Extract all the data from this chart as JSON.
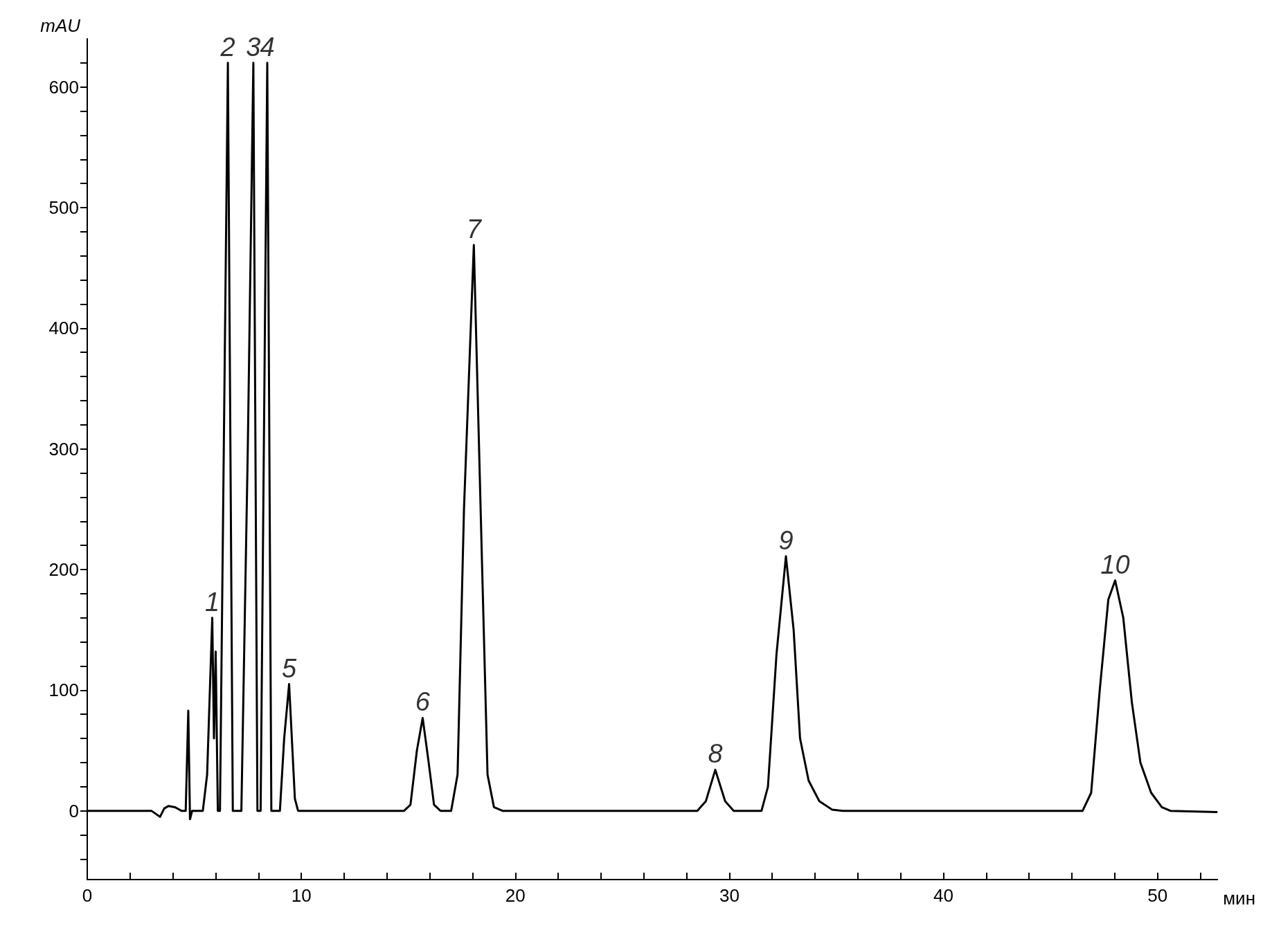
{
  "chart_data": {
    "type": "line",
    "xlabel": "мин",
    "ylabel": "mAU",
    "color": "#000000",
    "marker": "none",
    "xlim": [
      0,
      52.8
    ],
    "ylim": [
      -57,
      640
    ],
    "xticks": [
      0,
      {
        "value": 2,
        "label": null
      },
      {
        "value": 4,
        "label": null
      },
      {
        "value": 6,
        "label": null
      },
      {
        "value": 8,
        "label": null
      },
      10,
      {
        "value": 12,
        "label": null
      },
      {
        "value": 14,
        "label": null
      },
      {
        "value": 16,
        "label": null
      },
      {
        "value": 18,
        "label": null
      },
      20,
      {
        "value": 22,
        "label": null
      },
      {
        "value": 24,
        "label": null
      },
      {
        "value": 26,
        "label": null
      },
      {
        "value": 28,
        "label": null
      },
      30,
      {
        "value": 32,
        "label": null
      },
      {
        "value": 34,
        "label": null
      },
      {
        "value": 36,
        "label": null
      },
      {
        "value": 38,
        "label": null
      },
      40,
      {
        "value": 42,
        "label": null
      },
      {
        "value": 44,
        "label": null
      },
      {
        "value": 46,
        "label": null
      },
      {
        "value": 48,
        "label": null
      },
      50,
      {
        "value": 52,
        "label": null
      }
    ],
    "yticks": [
      {
        "value": -40,
        "label": null
      },
      {
        "value": -20,
        "label": null
      },
      0,
      {
        "value": 20,
        "label": null
      },
      {
        "value": 40,
        "label": null
      },
      {
        "value": 60,
        "label": null
      },
      {
        "value": 80,
        "label": null
      },
      100,
      {
        "value": 120,
        "label": null
      },
      {
        "value": 140,
        "label": null
      },
      {
        "value": 160,
        "label": null
      },
      {
        "value": 180,
        "label": null
      },
      200,
      {
        "value": 220,
        "label": null
      },
      {
        "value": 240,
        "label": null
      },
      {
        "value": 260,
        "label": null
      },
      {
        "value": 280,
        "label": null
      },
      300,
      {
        "value": 320,
        "label": null
      },
      {
        "value": 340,
        "label": null
      },
      {
        "value": 360,
        "label": null
      },
      {
        "value": 380,
        "label": null
      },
      400,
      {
        "value": 420,
        "label": null
      },
      {
        "value": 440,
        "label": null
      },
      {
        "value": 460,
        "label": null
      },
      {
        "value": 480,
        "label": null
      },
      500,
      {
        "value": 520,
        "label": null
      },
      {
        "value": 540,
        "label": null
      },
      {
        "value": 560,
        "label": null
      },
      {
        "value": 580,
        "label": null
      },
      600,
      {
        "value": 620,
        "label": null
      }
    ],
    "x": [
      0,
      3.0,
      3.4,
      3.6,
      3.8,
      4.1,
      4.4,
      4.6,
      4.72,
      4.8,
      4.9,
      5.4,
      5.6,
      5.84,
      5.92,
      6.0,
      6.1,
      6.2,
      6.57,
      6.8,
      7.2,
      7.5,
      7.76,
      7.95,
      8.1,
      8.41,
      8.6,
      9.0,
      9.2,
      9.43,
      9.7,
      9.85,
      14.8,
      15.1,
      15.4,
      15.67,
      15.95,
      16.2,
      16.5,
      17.0,
      17.3,
      17.6,
      18.06,
      18.45,
      18.7,
      19.0,
      19.4,
      28.5,
      28.9,
      29.34,
      29.8,
      30.2,
      31.5,
      31.8,
      32.2,
      32.64,
      33.0,
      33.3,
      33.7,
      34.2,
      34.8,
      35.3,
      46.5,
      46.9,
      47.3,
      47.7,
      48.02,
      48.4,
      48.8,
      49.2,
      49.7,
      50.2,
      50.6,
      52.8
    ],
    "values": [
      0,
      0,
      -5,
      2,
      4,
      3,
      0,
      0,
      83,
      -7,
      0,
      0,
      30,
      160,
      60,
      132,
      0,
      0,
      620,
      0,
      0,
      300,
      620,
      0,
      0,
      620,
      0,
      0,
      60,
      105,
      10,
      0,
      0,
      5,
      50,
      77,
      40,
      5,
      0,
      0,
      30,
      250,
      469,
      200,
      30,
      3,
      0,
      0,
      8,
      34,
      8,
      0,
      0,
      20,
      130,
      211,
      150,
      60,
      25,
      8,
      1,
      0,
      0,
      15,
      100,
      175,
      191,
      160,
      90,
      40,
      15,
      3,
      0,
      -1
    ],
    "annotations": [
      {
        "text": "1",
        "x": 5.84,
        "y": 160
      },
      {
        "text": "2",
        "x": 6.57,
        "y": 620
      },
      {
        "text": "3",
        "x": 7.76,
        "y": 620
      },
      {
        "text": "4",
        "x": 8.41,
        "y": 620
      },
      {
        "text": "5",
        "x": 9.43,
        "y": 105
      },
      {
        "text": "6",
        "x": 15.67,
        "y": 77
      },
      {
        "text": "7",
        "x": 18.06,
        "y": 469
      },
      {
        "text": "8",
        "x": 29.34,
        "y": 34
      },
      {
        "text": "9",
        "x": 32.64,
        "y": 211
      },
      {
        "text": "10",
        "x": 48.02,
        "y": 191
      }
    ]
  }
}
